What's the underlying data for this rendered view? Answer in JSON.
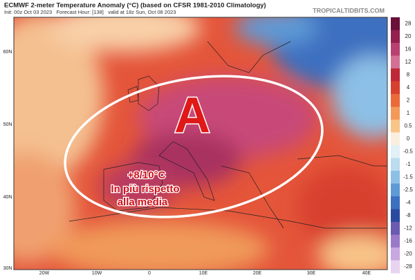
{
  "header": {
    "title": "ECMWF 2-meter Temperature Anomaly (°C) (based on CFSR 1981-2010 Climatology)",
    "subtitle": "Init: 00z Oct 03 2023   Forecast Hour: [138]   valid at 18z Sun, Oct 08 2023",
    "watermark": "TROPICALTIDBITS.COM"
  },
  "map": {
    "lat_labels": [
      "60N",
      "50N",
      "40N",
      "30N"
    ],
    "lon_labels": [
      "20W",
      "10W",
      "0",
      "10E",
      "20E",
      "30E",
      "40E"
    ]
  },
  "colorbar": {
    "levels": [
      28,
      20,
      16,
      12,
      8,
      4,
      2,
      1,
      0.5,
      0,
      -0.5,
      -1,
      -1.5,
      -2.5,
      -4,
      -8,
      -12,
      -16,
      -20,
      -28
    ],
    "colors": [
      "#6b1039",
      "#93204f",
      "#b94070",
      "#d27095",
      "#c02838",
      "#d8402e",
      "#ea6a3a",
      "#f39a5a",
      "#f8c488",
      "#faeede",
      "#e2f0f8",
      "#bcdcef",
      "#8cc0e6",
      "#5e9ad6",
      "#3c70c0",
      "#2a4aa0",
      "#6a5ab0",
      "#9a7ac8",
      "#c8a8e0",
      "#e8d4f0"
    ]
  },
  "annotations": {
    "high": "A",
    "line1": "+8/10°C",
    "line2": "In più rispetto",
    "line3": "alla media"
  }
}
